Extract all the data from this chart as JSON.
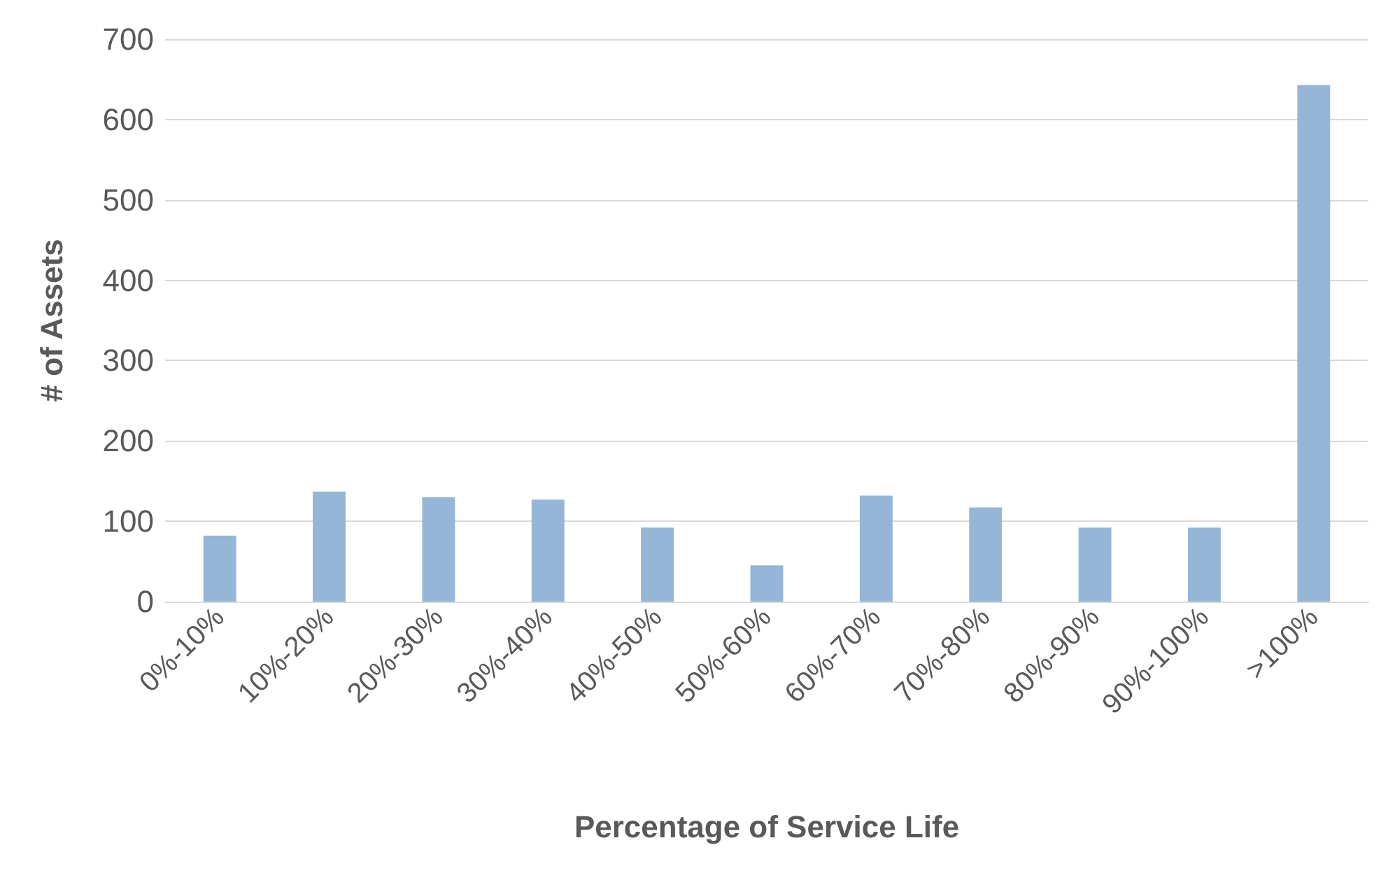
{
  "chart_data": {
    "type": "bar",
    "xlabel": "Percentage of Service Life",
    "ylabel": "# of Assets",
    "categories": [
      "0%-10%",
      "10%-20%",
      "20%-30%",
      "30%-40%",
      "40%-50%",
      "50%-60%",
      "60%-70%",
      "70%-80%",
      "80%-90%",
      "90%-100%",
      ">100%"
    ],
    "values": [
      82,
      137,
      130,
      127,
      92,
      45,
      132,
      117,
      92,
      92,
      643
    ],
    "color": "#95b6d6",
    "ylim": [
      0,
      700
    ],
    "yticks": [
      0,
      100,
      200,
      300,
      400,
      500,
      600,
      700
    ],
    "grid": "y"
  }
}
